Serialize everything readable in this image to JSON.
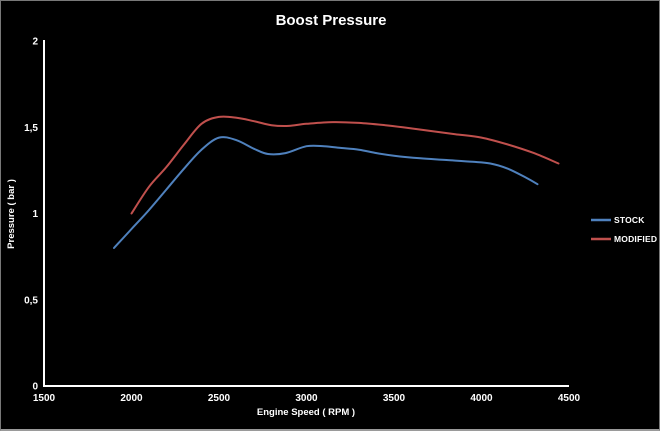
{
  "window": {
    "background": "#000000",
    "border_color": "#787878"
  },
  "chart_data": {
    "type": "line",
    "title": "Boost Pressure",
    "xlabel": "Engine Speed ( RPM )",
    "ylabel": "Pressure ( bar )",
    "xlim": [
      1500,
      4500
    ],
    "ylim": [
      0,
      2
    ],
    "x_ticks": [
      1500,
      2000,
      2500,
      3000,
      3500,
      4000,
      4500
    ],
    "x_tick_labels": [
      "1500",
      "2000",
      "2500",
      "3000",
      "3500",
      "4000",
      "4500"
    ],
    "y_ticks": [
      0,
      0.5,
      1,
      1.5,
      2
    ],
    "y_tick_labels": [
      "0",
      "0,5",
      "1",
      "1,5",
      "2"
    ],
    "grid": false,
    "legend_position": "right",
    "background_color": "#000000",
    "axis_color": "#ffffff",
    "text_color": "#ffffff",
    "series": [
      {
        "name": "STOCK",
        "color": "#4f81bd",
        "points": [
          [
            1900,
            0.8
          ],
          [
            2000,
            0.91
          ],
          [
            2100,
            1.02
          ],
          [
            2200,
            1.14
          ],
          [
            2300,
            1.26
          ],
          [
            2400,
            1.37
          ],
          [
            2500,
            1.44
          ],
          [
            2600,
            1.425
          ],
          [
            2700,
            1.375
          ],
          [
            2780,
            1.345
          ],
          [
            2880,
            1.35
          ],
          [
            3000,
            1.39
          ],
          [
            3100,
            1.39
          ],
          [
            3200,
            1.38
          ],
          [
            3300,
            1.37
          ],
          [
            3400,
            1.35
          ],
          [
            3500,
            1.335
          ],
          [
            3650,
            1.32
          ],
          [
            3800,
            1.31
          ],
          [
            3950,
            1.3
          ],
          [
            4050,
            1.29
          ],
          [
            4150,
            1.26
          ],
          [
            4250,
            1.21
          ],
          [
            4320,
            1.17
          ]
        ]
      },
      {
        "name": "MODIFIED",
        "color": "#c0504d",
        "points": [
          [
            2000,
            1.0
          ],
          [
            2100,
            1.155
          ],
          [
            2200,
            1.27
          ],
          [
            2300,
            1.4
          ],
          [
            2400,
            1.52
          ],
          [
            2500,
            1.56
          ],
          [
            2600,
            1.555
          ],
          [
            2700,
            1.535
          ],
          [
            2800,
            1.512
          ],
          [
            2900,
            1.508
          ],
          [
            3000,
            1.52
          ],
          [
            3150,
            1.53
          ],
          [
            3300,
            1.525
          ],
          [
            3450,
            1.512
          ],
          [
            3550,
            1.5
          ],
          [
            3700,
            1.48
          ],
          [
            3850,
            1.46
          ],
          [
            4000,
            1.44
          ],
          [
            4150,
            1.4
          ],
          [
            4300,
            1.35
          ],
          [
            4440,
            1.29
          ]
        ]
      }
    ]
  }
}
